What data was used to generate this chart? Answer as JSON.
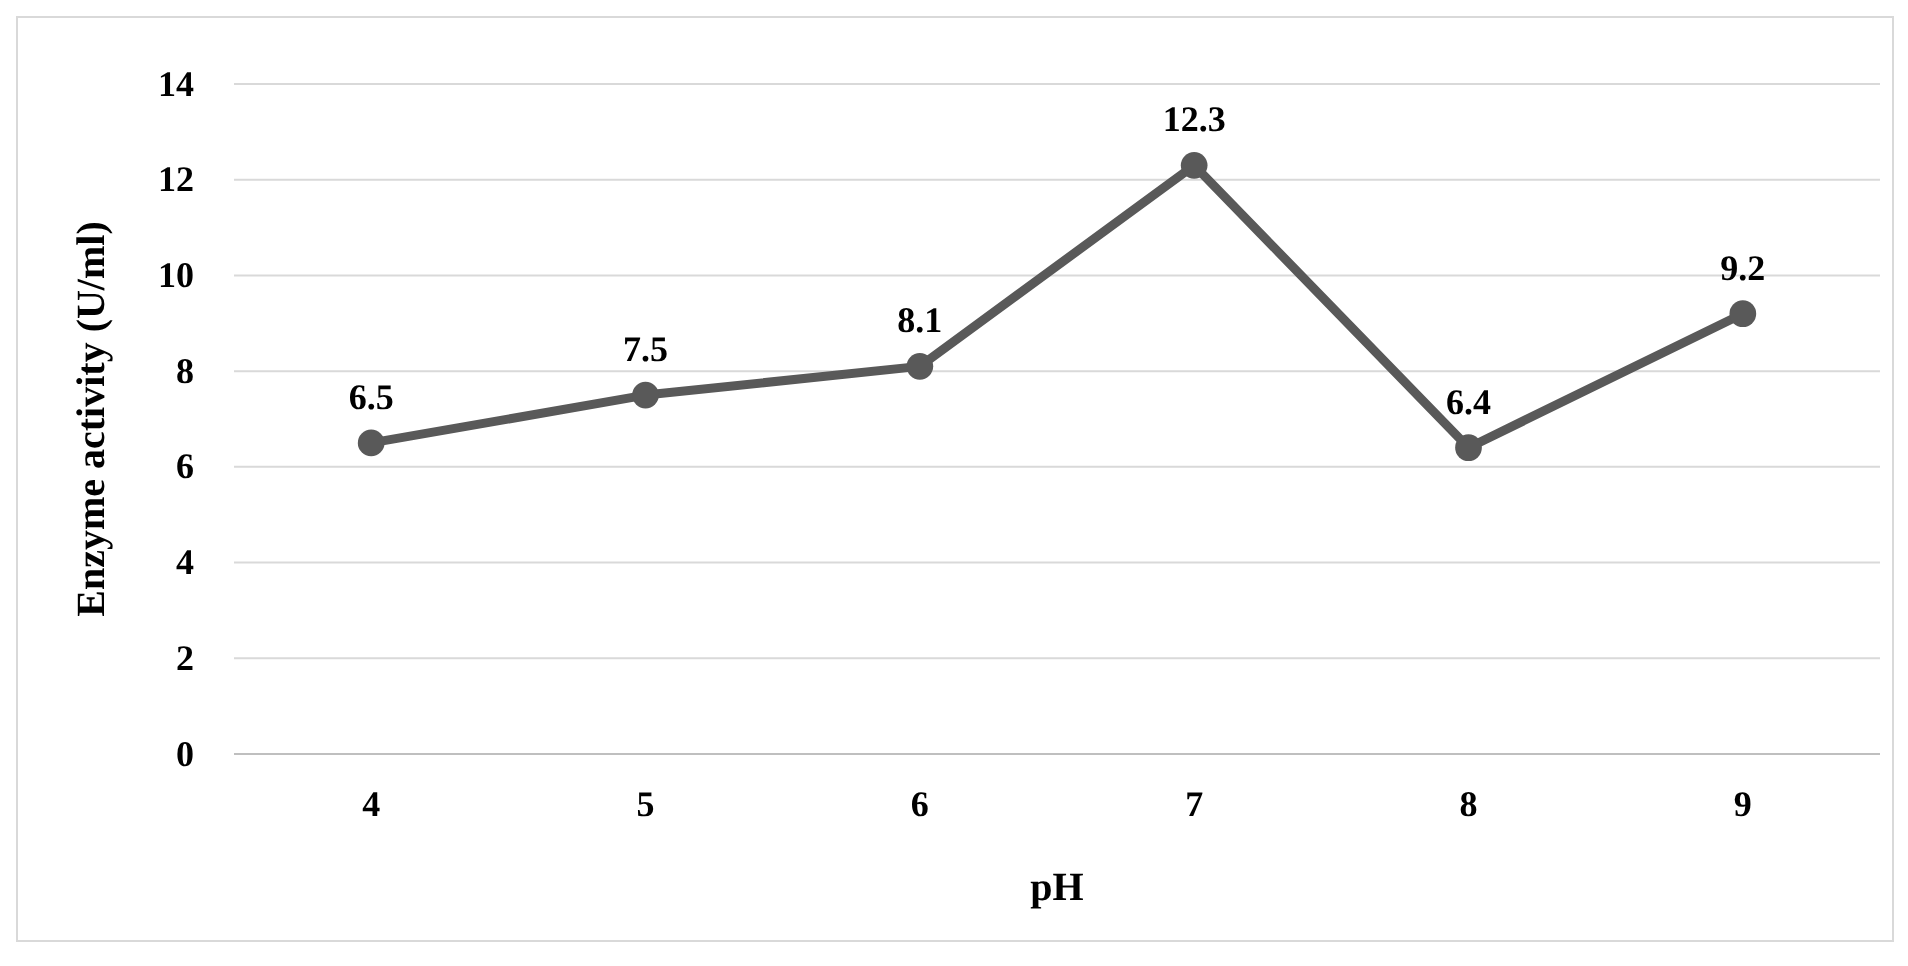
{
  "chart_data": {
    "type": "line",
    "xlabel": "pH",
    "ylabel": "Enzyme activity (U/ml)",
    "categories": [
      "4",
      "5",
      "6",
      "7",
      "8",
      "9"
    ],
    "series": [
      {
        "color": "#595959",
        "values": [
          6.5,
          7.5,
          8.1,
          12.3,
          6.4,
          9.2
        ]
      }
    ],
    "ylim": [
      0,
      14
    ],
    "yticks": [
      0,
      2,
      4,
      6,
      8,
      10,
      12,
      14
    ],
    "grid": "y",
    "marker": "circle",
    "line_style": "solid",
    "data_labels": true
  }
}
